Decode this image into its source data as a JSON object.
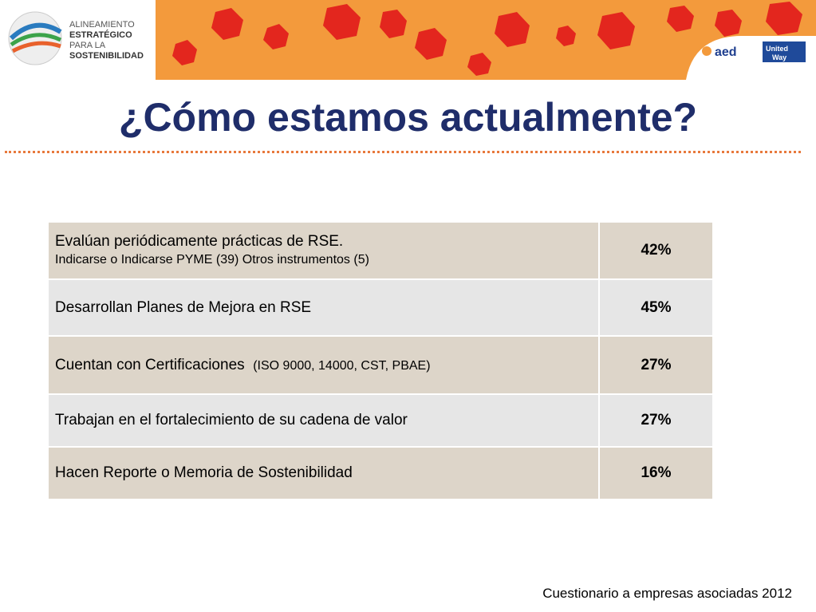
{
  "header": {
    "logo": [
      "ALINEAMIENTO",
      "ESTRATÉGICO",
      "PARA LA",
      "SOSTENIBILIDAD"
    ],
    "partners": [
      "aed",
      "United",
      "Way"
    ]
  },
  "title": "¿Cómo estamos actualmente?",
  "table": {
    "rows": [
      {
        "label": "Evalúan periódicamente prácticas de RSE.",
        "note": "Indicarse o Indicarse PYME (39)  Otros instrumentos (5)",
        "value": "42%"
      },
      {
        "label": "Desarrollan Planes de Mejora en RSE",
        "value": "45%"
      },
      {
        "label": "Cuentan con Certificaciones",
        "note": "(ISO 9000, 14000, CST, PBAE)",
        "value": "27%"
      },
      {
        "label": "Trabajan en el fortalecimiento de su cadena de valor",
        "value": "27%"
      },
      {
        "label": "Hacen Reporte o Memoria de Sostenibilidad",
        "value": "16%"
      }
    ]
  },
  "footer": "Cuestionario a empresas asociadas 2012"
}
